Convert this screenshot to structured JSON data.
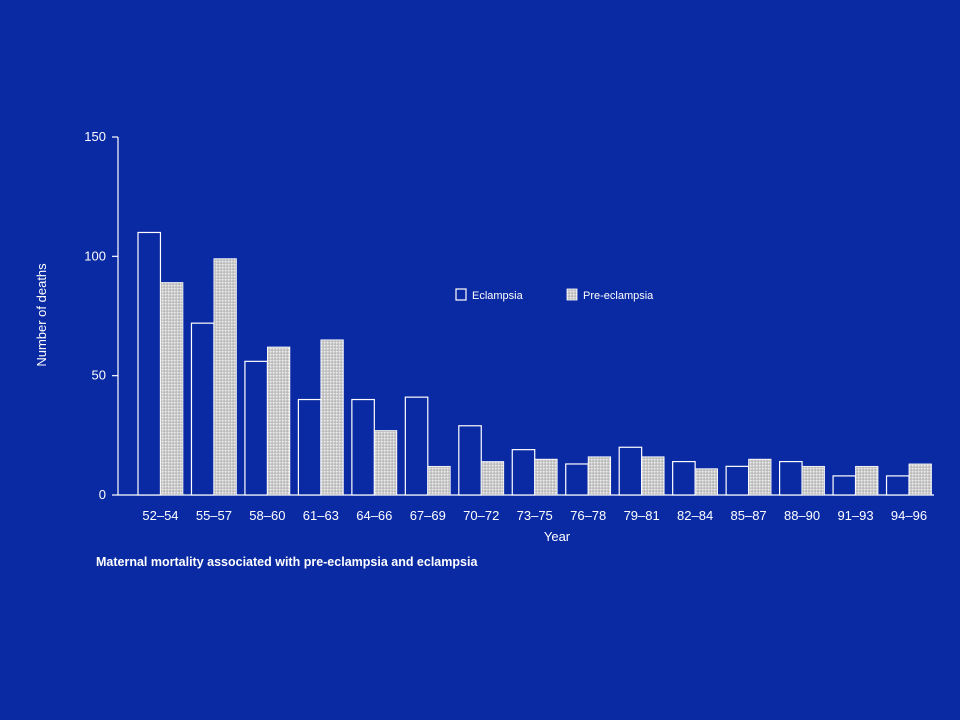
{
  "chart_data": {
    "type": "bar",
    "title": "",
    "caption": "Maternal mortality associated with pre-eclampsia and eclampsia",
    "xlabel": "Year",
    "ylabel": "Number of deaths",
    "ylim": [
      0,
      150
    ],
    "yticks": [
      0,
      50,
      100,
      150
    ],
    "grid": false,
    "legend_position": "center-right",
    "categories": [
      "52–54",
      "55–57",
      "58–60",
      "61–63",
      "64–66",
      "67–69",
      "70–72",
      "73–75",
      "76–78",
      "79–81",
      "82–84",
      "85–87",
      "88–90",
      "91–93",
      "94–96"
    ],
    "series": [
      {
        "name": "Eclampsia",
        "style": "outline",
        "color": "#ffffff",
        "values": [
          110,
          72,
          56,
          40,
          40,
          41,
          29,
          19,
          13,
          20,
          14,
          12,
          14,
          8,
          8
        ]
      },
      {
        "name": "Pre-eclampsia",
        "style": "stippled",
        "color": "#d8d8d8",
        "values": [
          89,
          99,
          62,
          65,
          27,
          12,
          14,
          15,
          16,
          16,
          11,
          15,
          12,
          12,
          13
        ]
      }
    ]
  },
  "colors": {
    "background": "#0a2aa3",
    "foreground": "#ffffff"
  }
}
